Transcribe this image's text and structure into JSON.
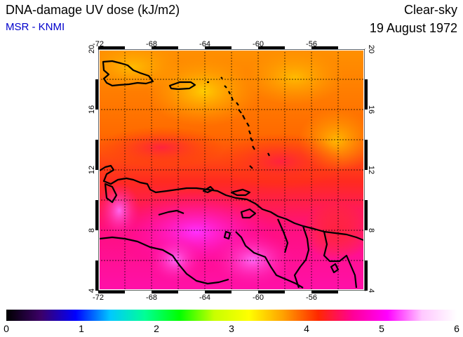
{
  "header": {
    "title": "DNA-damage UV dose (kJ/m2)",
    "source": "MSR - KNMI",
    "condition": "Clear-sky",
    "date": "19 August 1972"
  },
  "map": {
    "lon_ticks": [
      "-72",
      "-68",
      "-64",
      "-60",
      "-56"
    ],
    "lat_ticks": [
      "4",
      "8",
      "12",
      "16",
      "20"
    ],
    "lon_range": [
      -72,
      -52
    ],
    "lat_range": [
      4,
      20
    ]
  },
  "colorbar": {
    "min": 0,
    "max": 6,
    "labels": [
      "0",
      "1",
      "2",
      "3",
      "4",
      "5",
      "6"
    ],
    "colors": [
      "#000000",
      "#3c0068",
      "#0000ff",
      "#00c8ff",
      "#00ff96",
      "#00ff00",
      "#c8ff00",
      "#ffff00",
      "#ffa000",
      "#ff2800",
      "#ff0096",
      "#ff00ff",
      "#ffc8ff",
      "#ffffff"
    ]
  }
}
